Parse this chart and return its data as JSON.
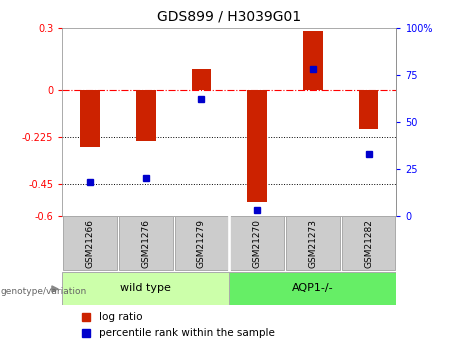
{
  "title": "GDS899 / H3039G01",
  "samples": [
    "GSM21266",
    "GSM21276",
    "GSM21279",
    "GSM21270",
    "GSM21273",
    "GSM21282"
  ],
  "log_ratio": [
    -0.27,
    -0.245,
    0.1,
    -0.535,
    0.285,
    -0.185
  ],
  "percentile_rank": [
    18,
    20,
    62,
    3,
    78,
    33
  ],
  "ylim_left": [
    -0.6,
    0.3
  ],
  "ylim_right": [
    0,
    100
  ],
  "yticks_left": [
    0.3,
    0,
    -0.225,
    -0.45,
    -0.6
  ],
  "yticks_right": [
    100,
    75,
    50,
    25,
    0
  ],
  "hlines_dotted": [
    -0.225,
    -0.45
  ],
  "hline_dash": 0,
  "bar_color": "#cc2200",
  "dot_color": "#0000cc",
  "bar_width": 0.35,
  "group_wt_label": "wild type",
  "group_aqp1_label": "AQP1-/-",
  "genotype_label": "genotype/variation",
  "legend_logratio": "log ratio",
  "legend_percentile": "percentile rank within the sample",
  "background_color": "#ffffff",
  "plot_bg": "#ffffff",
  "box_wt_color": "#ccffaa",
  "box_aqp1_color": "#66ee66",
  "sample_box_color": "#cccccc"
}
